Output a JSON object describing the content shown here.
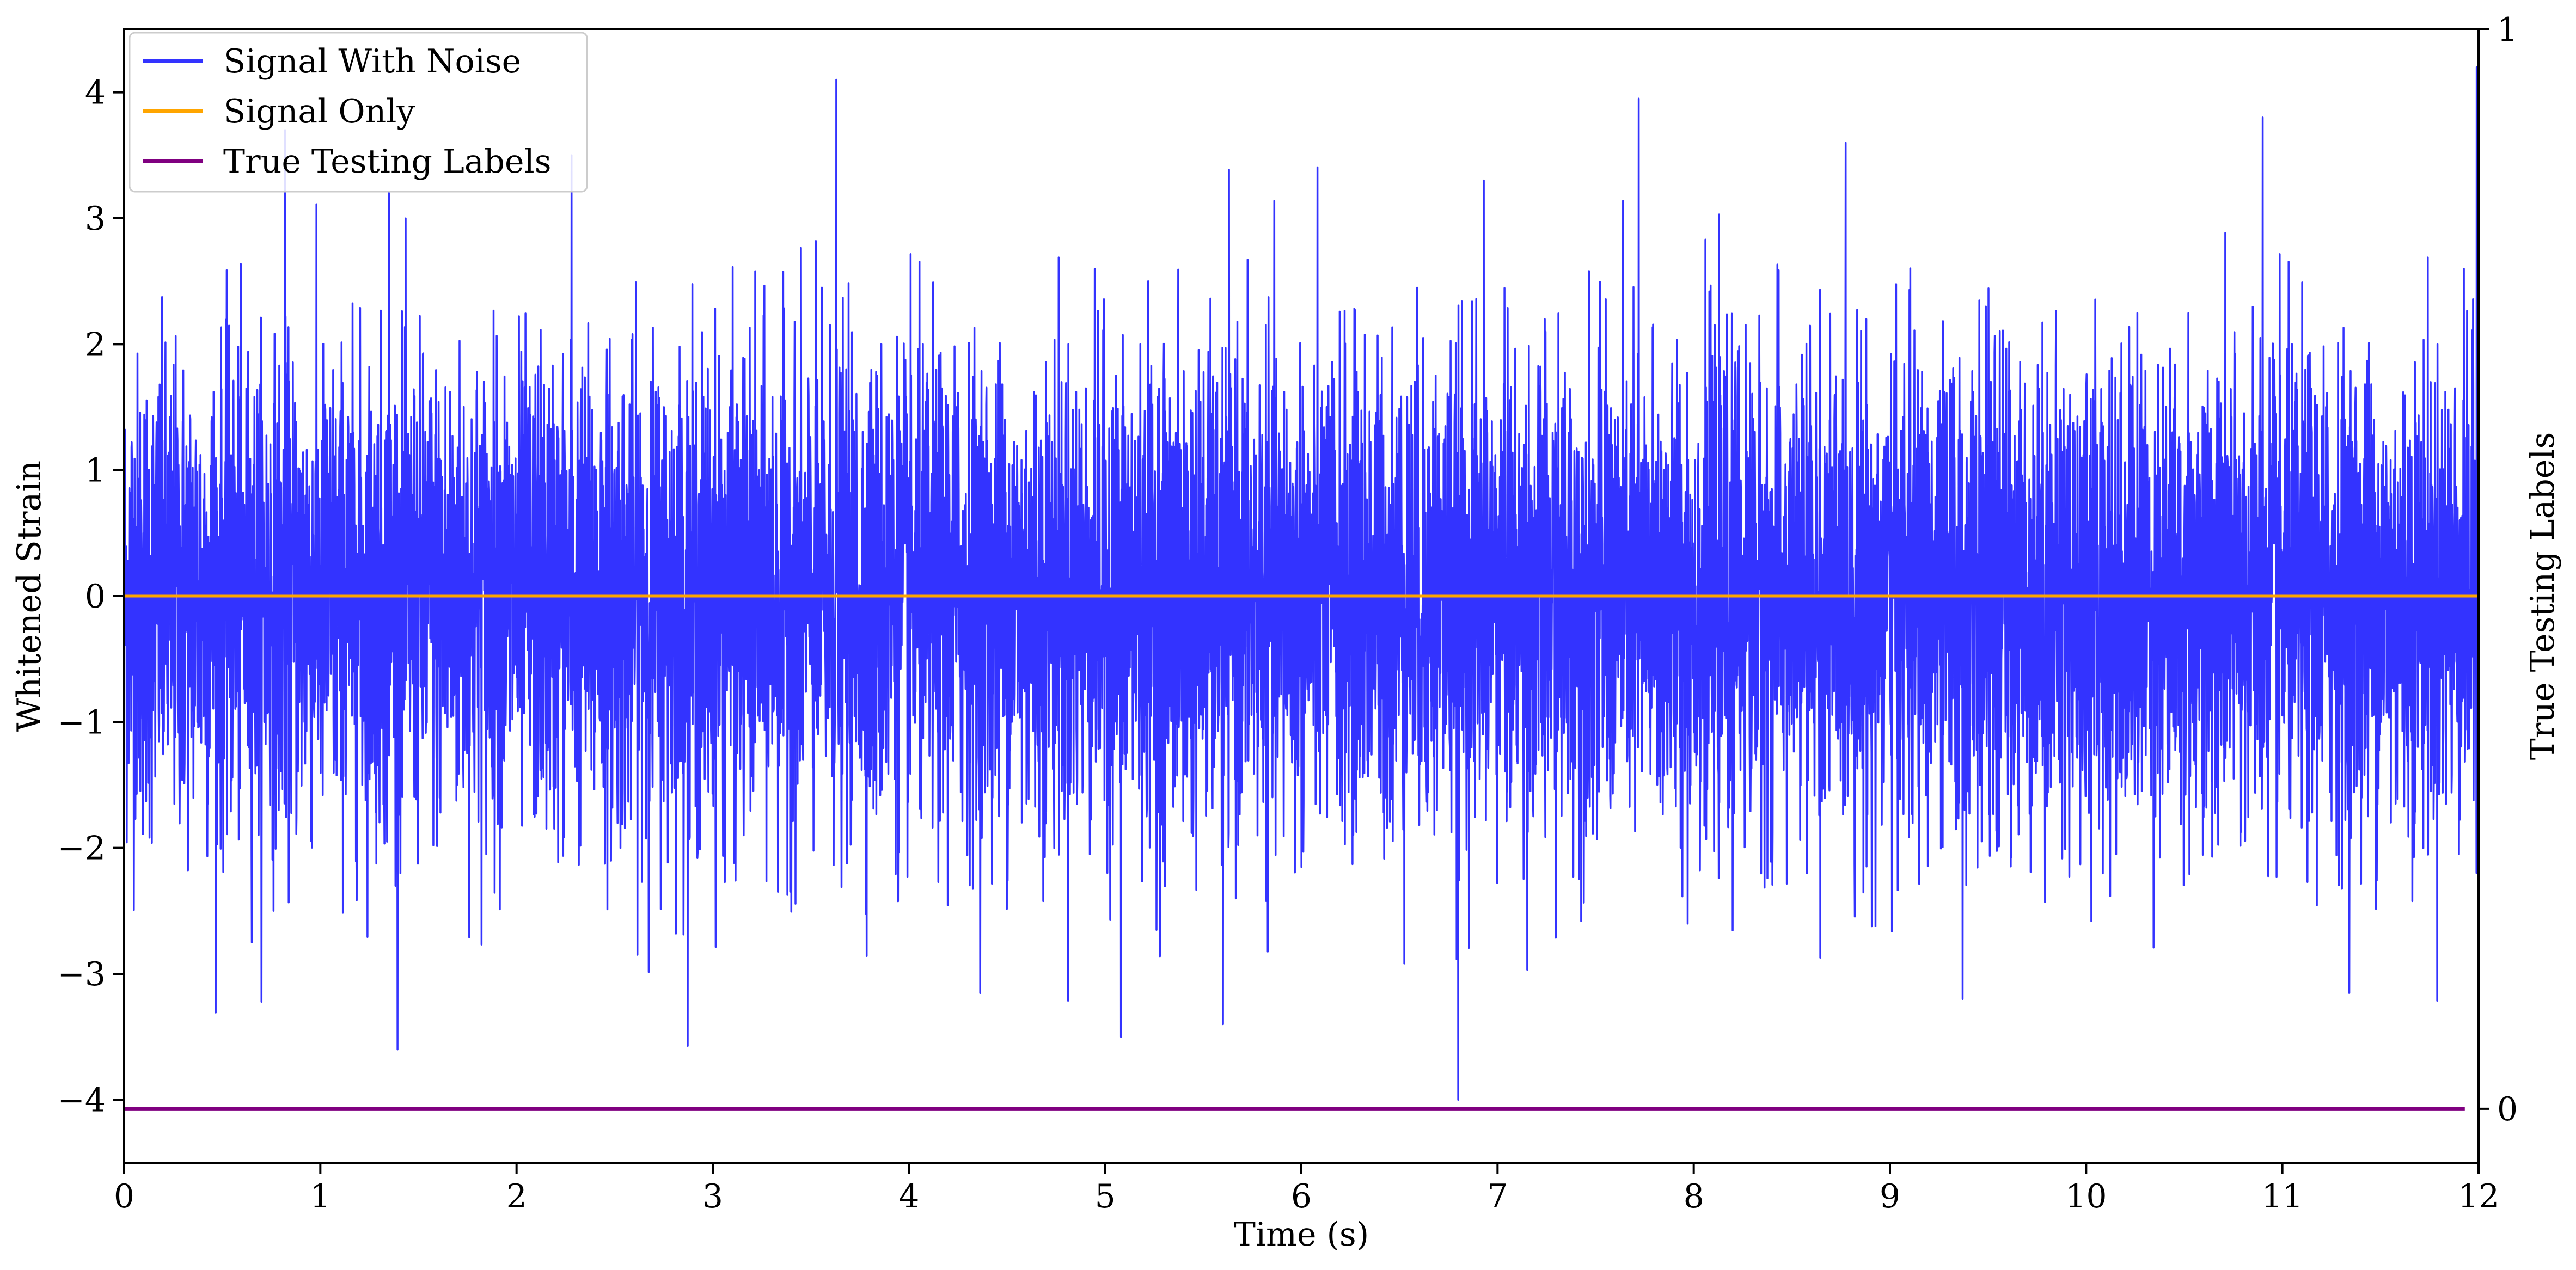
{
  "chart_data": {
    "type": "line",
    "title": "",
    "xlabel": "Time (s)",
    "ylabel": "Whitened Strain",
    "ylabel_right": "True Testing Labels",
    "xlim": [
      0,
      12
    ],
    "ylim": [
      -4.5,
      4.5
    ],
    "ylim_right": [
      -0.05,
      1.0
    ],
    "x_ticks": [
      0,
      1,
      2,
      3,
      4,
      5,
      6,
      7,
      8,
      9,
      10,
      11,
      12
    ],
    "x_tick_labels": [
      "0",
      "1",
      "2",
      "3",
      "4",
      "5",
      "6",
      "7",
      "8",
      "9",
      "10",
      "11",
      "12"
    ],
    "y_ticks": [
      -4,
      -3,
      -2,
      -1,
      0,
      1,
      2,
      3,
      4
    ],
    "y_tick_labels": [
      "−4",
      "−3",
      "−2",
      "−1",
      "0",
      "1",
      "2",
      "3",
      "4"
    ],
    "y_right_ticks": [
      0,
      1
    ],
    "y_right_tick_labels": [
      "0",
      "1"
    ],
    "grid": false,
    "legend_position": "top-left",
    "series": [
      {
        "name": "Signal With Noise",
        "axis": "left",
        "color": "#3333ff",
        "description_values": "zero-mean noise, typical |y| ≈ 1, occasional spikes",
        "peaks": [
          {
            "x": 0.82,
            "y": 3.7
          },
          {
            "x": 1.35,
            "y": 3.2
          },
          {
            "x": 2.28,
            "y": 3.5
          },
          {
            "x": 3.63,
            "y": 4.1
          },
          {
            "x": 6.8,
            "y": -4.0
          },
          {
            "x": 5.08,
            "y": -3.5
          },
          {
            "x": 5.6,
            "y": -3.4
          },
          {
            "x": 7.72,
            "y": 3.95
          },
          {
            "x": 6.93,
            "y": 3.3
          },
          {
            "x": 11.99,
            "y": 4.2
          },
          {
            "x": 10.9,
            "y": 3.8
          },
          {
            "x": 9.37,
            "y": -3.2
          }
        ]
      },
      {
        "name": "Signal Only",
        "axis": "left",
        "color": "#ffa500",
        "x": [
          0,
          12
        ],
        "y": [
          0,
          0
        ]
      },
      {
        "name": "True Testing Labels",
        "axis": "right",
        "color": "#800080",
        "x": [
          0,
          11.93
        ],
        "y": [
          0,
          0
        ]
      }
    ]
  }
}
